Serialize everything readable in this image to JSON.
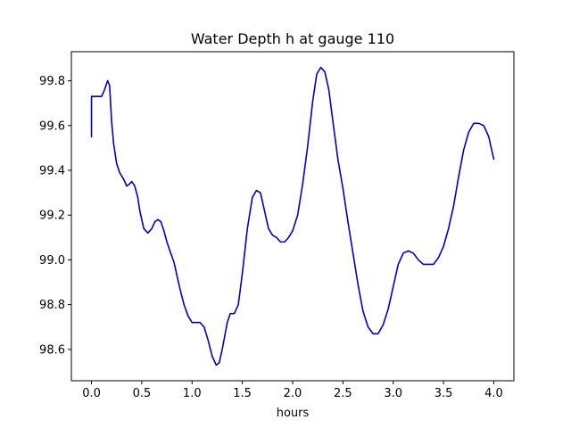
{
  "chart_data": {
    "type": "line",
    "title": "Water Depth h at gauge 110",
    "xlabel": "hours",
    "ylabel": "",
    "xlim": [
      -0.2,
      4.2
    ],
    "ylim": [
      98.46,
      99.93
    ],
    "xticks": [
      0.0,
      0.5,
      1.0,
      1.5,
      2.0,
      2.5,
      3.0,
      3.5,
      4.0
    ],
    "xtick_labels": [
      "0.0",
      "0.5",
      "1.0",
      "1.5",
      "2.0",
      "2.5",
      "3.0",
      "3.5",
      "4.0"
    ],
    "yticks": [
      98.6,
      98.8,
      99.0,
      99.2,
      99.4,
      99.6,
      99.8
    ],
    "ytick_labels": [
      "98.6",
      "98.8",
      "99.0",
      "99.2",
      "99.4",
      "99.6",
      "99.8"
    ],
    "grid": false,
    "series": [
      {
        "color": "#0000cc",
        "x": [
          0.0,
          0.0,
          0.05,
          0.1,
          0.13,
          0.16,
          0.18,
          0.2,
          0.22,
          0.25,
          0.28,
          0.32,
          0.35,
          0.38,
          0.4,
          0.43,
          0.46,
          0.48,
          0.52,
          0.56,
          0.6,
          0.63,
          0.66,
          0.69,
          0.72,
          0.75,
          0.78,
          0.82,
          0.88,
          0.92,
          0.96,
          1.0,
          1.04,
          1.08,
          1.12,
          1.16,
          1.2,
          1.24,
          1.27,
          1.3,
          1.35,
          1.38,
          1.42,
          1.46,
          1.5,
          1.55,
          1.6,
          1.64,
          1.68,
          1.72,
          1.76,
          1.8,
          1.84,
          1.88,
          1.92,
          1.96,
          2.0,
          2.05,
          2.1,
          2.15,
          2.2,
          2.24,
          2.28,
          2.32,
          2.36,
          2.4,
          2.45,
          2.5,
          2.55,
          2.6,
          2.65,
          2.7,
          2.75,
          2.8,
          2.85,
          2.9,
          2.95,
          3.0,
          3.05,
          3.1,
          3.15,
          3.2,
          3.25,
          3.3,
          3.35,
          3.4,
          3.45,
          3.5,
          3.55,
          3.6,
          3.65,
          3.7,
          3.75,
          3.8,
          3.85,
          3.9,
          3.95,
          4.0
        ],
        "y": [
          99.55,
          99.73,
          99.73,
          99.73,
          99.76,
          99.8,
          99.78,
          99.62,
          99.52,
          99.43,
          99.39,
          99.36,
          99.33,
          99.34,
          99.35,
          99.33,
          99.28,
          99.22,
          99.14,
          99.12,
          99.14,
          99.17,
          99.18,
          99.17,
          99.13,
          99.08,
          99.04,
          98.99,
          98.87,
          98.8,
          98.75,
          98.72,
          98.72,
          98.72,
          98.7,
          98.64,
          98.57,
          98.53,
          98.54,
          98.6,
          98.72,
          98.76,
          98.76,
          98.8,
          98.94,
          99.14,
          99.28,
          99.31,
          99.3,
          99.22,
          99.14,
          99.11,
          99.1,
          99.08,
          99.08,
          99.1,
          99.13,
          99.2,
          99.34,
          99.51,
          99.71,
          99.83,
          99.86,
          99.84,
          99.76,
          99.62,
          99.45,
          99.32,
          99.17,
          99.03,
          98.89,
          98.77,
          98.7,
          98.67,
          98.67,
          98.71,
          98.78,
          98.88,
          98.98,
          99.03,
          99.04,
          99.03,
          99.0,
          98.98,
          98.98,
          98.98,
          99.01,
          99.06,
          99.14,
          99.24,
          99.37,
          99.49,
          99.57,
          99.61,
          99.61,
          99.6,
          99.55,
          99.45
        ]
      }
    ]
  }
}
